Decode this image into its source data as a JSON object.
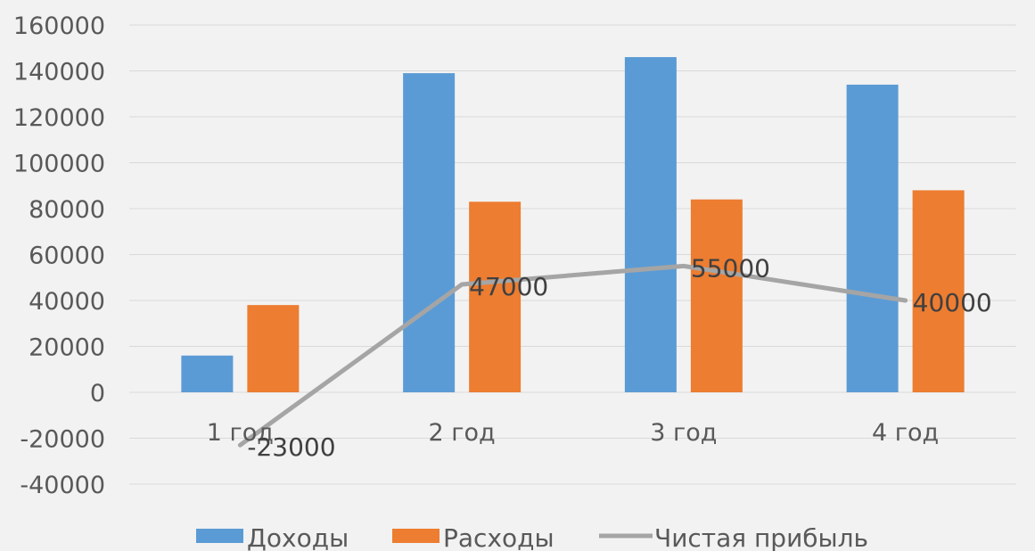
{
  "chart_data": {
    "type": "bar",
    "categories": [
      "1 год",
      "2 год",
      "3 год",
      "4 год"
    ],
    "ylim": [
      -40000,
      160000
    ],
    "yticks": [
      160000,
      140000,
      120000,
      100000,
      80000,
      60000,
      40000,
      20000,
      0,
      -20000,
      -40000
    ],
    "ytick_labels": [
      "160000",
      "140000",
      "120000",
      "100000",
      "80000",
      "60000",
      "40000",
      "20000",
      "0",
      "-20000",
      "-40000"
    ],
    "grid": true,
    "legend_position": "bottom",
    "series": [
      {
        "name": "Доходы",
        "type": "bar",
        "color": "#5b9bd5",
        "values": [
          16000,
          139000,
          146000,
          134000
        ]
      },
      {
        "name": "Расходы",
        "type": "bar",
        "color": "#ed7d31",
        "values": [
          38000,
          83000,
          84000,
          88000
        ]
      },
      {
        "name": "Чистая прибыль",
        "type": "line",
        "color": "#a5a5a5",
        "values": [
          -23000,
          47000,
          55000,
          40000
        ],
        "data_labels": [
          "-23000",
          "47000",
          "55000",
          "40000"
        ]
      }
    ]
  }
}
